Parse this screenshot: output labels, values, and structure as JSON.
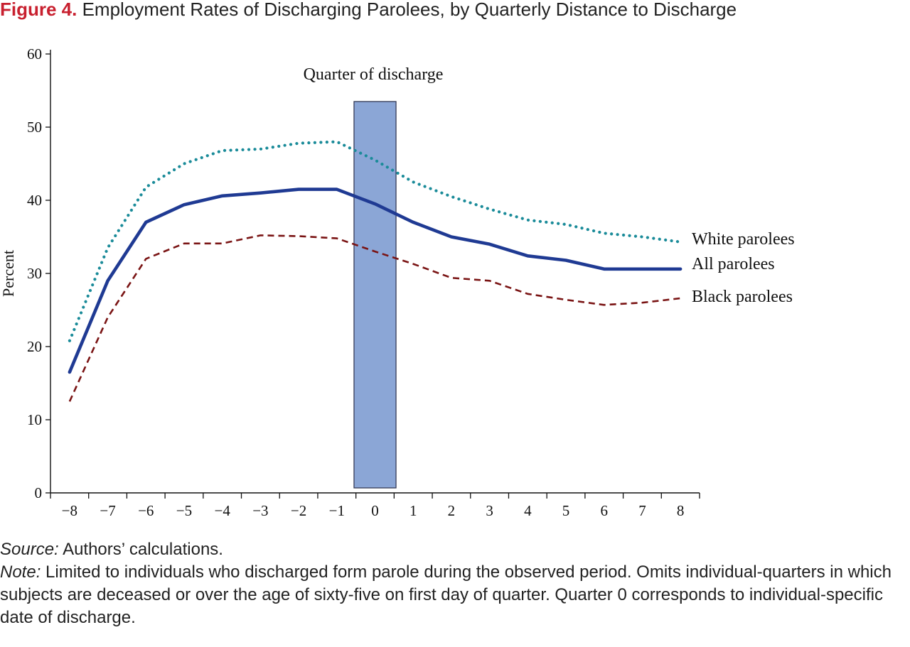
{
  "figure": {
    "number": "Figure 4.",
    "title": "Employment Rates of Discharging Parolees, by Quarterly Distance to Discharge"
  },
  "chart_data": {
    "type": "line",
    "ylabel": "Percent",
    "ylim": [
      0,
      60
    ],
    "yticks": [
      0,
      10,
      20,
      30,
      40,
      50,
      60
    ],
    "xlim": [
      -8.5,
      8.5
    ],
    "x": [
      -8,
      -7,
      -6,
      -5,
      -4,
      -3,
      -2,
      -1,
      0,
      1,
      2,
      3,
      4,
      5,
      6,
      7,
      8
    ],
    "xtick_labels": [
      "−8",
      "−7",
      "−6",
      "−5",
      "−4",
      "−3",
      "−2",
      "−1",
      "0",
      "1",
      "2",
      "3",
      "4",
      "5",
      "6",
      "7",
      "8"
    ],
    "highlight": {
      "label": "Quarter of discharge",
      "x_from": -0.55,
      "x_to": 0.55,
      "y_to": 53.5,
      "color": "#8ba6d6"
    },
    "series": [
      {
        "name": "White parolees",
        "style": "dotted",
        "color": "#1a8b99",
        "values": [
          20.8,
          33.5,
          41.8,
          45.0,
          46.8,
          47.0,
          47.8,
          48.0,
          45.5,
          42.5,
          40.5,
          38.8,
          37.3,
          36.7,
          35.5,
          35.0,
          34.3
        ]
      },
      {
        "name": "All parolees",
        "style": "solid",
        "color": "#1f3a93",
        "values": [
          16.5,
          29.0,
          37.0,
          39.4,
          40.6,
          41.0,
          41.5,
          41.5,
          39.5,
          37.0,
          35.0,
          34.0,
          32.4,
          31.8,
          30.6,
          30.6,
          30.6
        ]
      },
      {
        "name": "Black parolees",
        "style": "dashed",
        "color": "#7a1414",
        "values": [
          12.5,
          24.0,
          32.0,
          34.1,
          34.1,
          35.2,
          35.1,
          34.8,
          33.0,
          31.3,
          29.4,
          29.0,
          27.2,
          26.4,
          25.7,
          26.0,
          26.6
        ]
      }
    ]
  },
  "notes": {
    "source_label": "Source:",
    "source_text": " Authors’ calculations.",
    "note_label": "Note:",
    "note_text": " Limited to individuals who discharged form parole during the observed period. Omits individual-quarters in which subjects are deceased or over the age of sixty-five on first day of quarter. Quarter 0 corresponds to individual-specific date of discharge."
  }
}
